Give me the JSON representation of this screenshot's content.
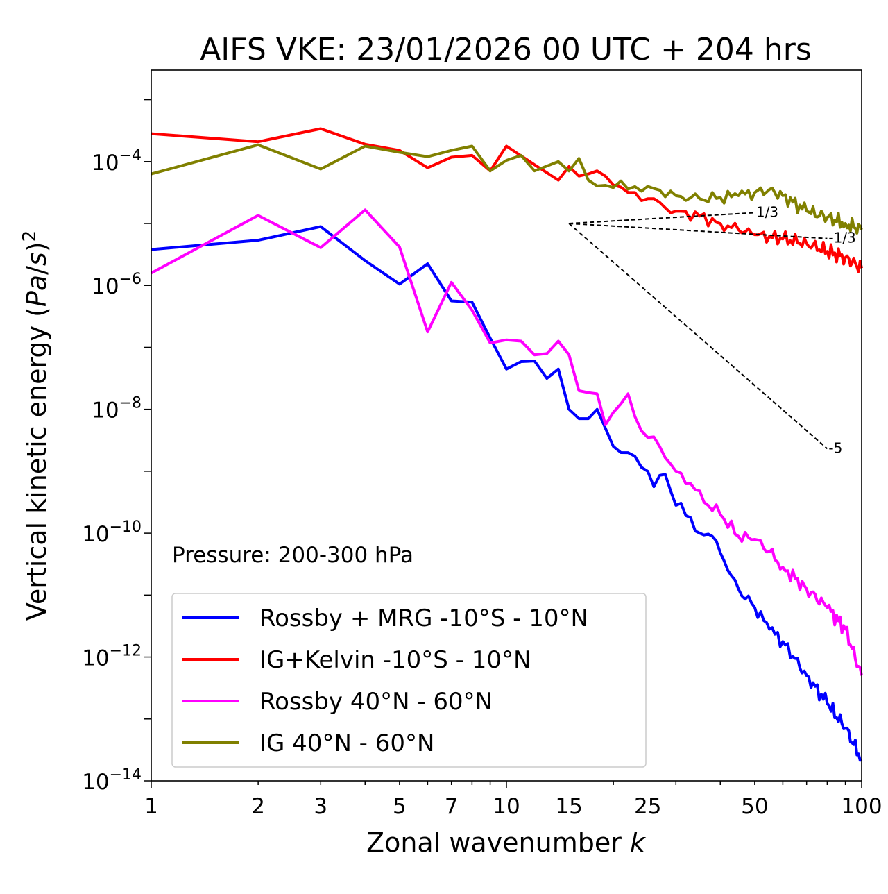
{
  "chart_data": {
    "type": "line",
    "title": "AIFS VKE: 23/01/2026 00 UTC + 204 hrs",
    "xlabel": "Zonal wavenumber k",
    "ylabel": "Vertical kinetic energy (Pa/s)^2",
    "x_scale": "log",
    "y_scale": "log",
    "xlim": [
      1,
      100
    ],
    "ylim": [
      1e-14,
      0.003
    ],
    "x_ticks": [
      1,
      2,
      3,
      5,
      7,
      10,
      15,
      25,
      50,
      100
    ],
    "y_ticks": [
      {
        "value": 1e-14,
        "base": "10",
        "exp": "−14"
      },
      {
        "value": 1e-12,
        "base": "10",
        "exp": "−12"
      },
      {
        "value": 1e-10,
        "base": "10",
        "exp": "−10"
      },
      {
        "value": 1e-08,
        "base": "10",
        "exp": "−8"
      },
      {
        "value": 1e-06,
        "base": "10",
        "exp": "−6"
      },
      {
        "value": 0.0001,
        "base": "10",
        "exp": "−4"
      }
    ],
    "annotation": "Pressure: 200-300 hPa",
    "legend_position": "lower-left",
    "series": [
      {
        "name": "Rossby + MRG -10°S - 10°N",
        "color": "#0000ff",
        "logy_anchors": [
          [
            1,
            -5.42
          ],
          [
            2,
            -5.27
          ],
          [
            3,
            -5.05
          ],
          [
            4,
            -5.6
          ],
          [
            5,
            -5.98
          ],
          [
            6,
            -5.65
          ],
          [
            7,
            -6.25
          ],
          [
            8,
            -6.27
          ],
          [
            9,
            -6.85
          ],
          [
            10,
            -7.35
          ],
          [
            11,
            -7.23
          ],
          [
            12,
            -7.22
          ],
          [
            13,
            -7.5
          ],
          [
            14,
            -7.35
          ],
          [
            15,
            -8.0
          ],
          [
            16,
            -8.15
          ],
          [
            17,
            -8.15
          ],
          [
            18,
            -8.0
          ],
          [
            20,
            -8.6
          ],
          [
            22,
            -8.7
          ],
          [
            25,
            -9.0
          ],
          [
            26,
            -9.25
          ],
          [
            28,
            -9.05
          ],
          [
            30,
            -9.55
          ],
          [
            33,
            -9.75
          ],
          [
            35,
            -10.0
          ],
          [
            38,
            -10.05
          ],
          [
            42,
            -10.6
          ],
          [
            45,
            -10.9
          ],
          [
            50,
            -11.2
          ],
          [
            55,
            -11.55
          ],
          [
            60,
            -11.75
          ],
          [
            70,
            -12.3
          ],
          [
            80,
            -12.75
          ],
          [
            90,
            -13.15
          ],
          [
            100,
            -13.65
          ]
        ]
      },
      {
        "name": "IG+Kelvin -10°S - 10°N",
        "color": "#ff0000",
        "logy_anchors": [
          [
            1,
            -3.55
          ],
          [
            2,
            -3.68
          ],
          [
            3,
            -3.47
          ],
          [
            4,
            -3.72
          ],
          [
            5,
            -3.82
          ],
          [
            6,
            -4.1
          ],
          [
            7,
            -3.93
          ],
          [
            8,
            -3.9
          ],
          [
            9,
            -4.15
          ],
          [
            10,
            -3.75
          ],
          [
            12,
            -4.05
          ],
          [
            14,
            -4.3
          ],
          [
            15,
            -4.08
          ],
          [
            17,
            -4.2
          ],
          [
            18,
            -4.15
          ],
          [
            20,
            -4.38
          ],
          [
            22,
            -4.5
          ],
          [
            25,
            -4.6
          ],
          [
            30,
            -4.8
          ],
          [
            35,
            -4.88
          ],
          [
            40,
            -5.0
          ],
          [
            45,
            -5.1
          ],
          [
            50,
            -5.18
          ],
          [
            60,
            -5.25
          ],
          [
            70,
            -5.32
          ],
          [
            80,
            -5.45
          ],
          [
            90,
            -5.55
          ],
          [
            100,
            -5.72
          ]
        ]
      },
      {
        "name": "Rossby 40°N - 60°N",
        "color": "#ff00ff",
        "logy_anchors": [
          [
            1,
            -5.8
          ],
          [
            2,
            -4.87
          ],
          [
            3,
            -5.39
          ],
          [
            4,
            -4.78
          ],
          [
            5,
            -5.38
          ],
          [
            6,
            -6.75
          ],
          [
            7,
            -5.95
          ],
          [
            8,
            -6.4
          ],
          [
            9,
            -6.93
          ],
          [
            10,
            -6.88
          ],
          [
            11,
            -6.9
          ],
          [
            12,
            -7.12
          ],
          [
            13,
            -7.1
          ],
          [
            14,
            -6.9
          ],
          [
            15,
            -7.12
          ],
          [
            16,
            -7.7
          ],
          [
            18,
            -7.75
          ],
          [
            19,
            -8.25
          ],
          [
            20,
            -8.05
          ],
          [
            22,
            -7.75
          ],
          [
            24,
            -8.35
          ],
          [
            27,
            -8.6
          ],
          [
            30,
            -9.0
          ],
          [
            33,
            -9.2
          ],
          [
            36,
            -9.5
          ],
          [
            40,
            -9.7
          ],
          [
            45,
            -10.05
          ],
          [
            50,
            -10.1
          ],
          [
            55,
            -10.3
          ],
          [
            60,
            -10.55
          ],
          [
            70,
            -10.9
          ],
          [
            80,
            -11.2
          ],
          [
            90,
            -11.55
          ],
          [
            100,
            -12.3
          ]
        ]
      },
      {
        "name": "IG 40°N - 60°N",
        "color": "#808000",
        "logy_anchors": [
          [
            1,
            -4.2
          ],
          [
            2,
            -3.73
          ],
          [
            3,
            -4.12
          ],
          [
            4,
            -3.75
          ],
          [
            5,
            -3.85
          ],
          [
            6,
            -3.92
          ],
          [
            7,
            -3.82
          ],
          [
            8,
            -3.75
          ],
          [
            9,
            -4.15
          ],
          [
            10,
            -3.98
          ],
          [
            11,
            -3.9
          ],
          [
            12,
            -4.15
          ],
          [
            14,
            -4.0
          ],
          [
            15,
            -4.15
          ],
          [
            16,
            -3.95
          ],
          [
            17,
            -4.3
          ],
          [
            20,
            -4.42
          ],
          [
            25,
            -4.4
          ],
          [
            30,
            -4.55
          ],
          [
            35,
            -4.6
          ],
          [
            40,
            -4.58
          ],
          [
            45,
            -4.55
          ],
          [
            50,
            -4.5
          ],
          [
            55,
            -4.45
          ],
          [
            60,
            -4.55
          ],
          [
            70,
            -4.8
          ],
          [
            80,
            -4.9
          ],
          [
            90,
            -5.0
          ],
          [
            100,
            -5.1
          ]
        ]
      }
    ],
    "reference_lines": [
      {
        "label": "1/3",
        "slope": 0.3333,
        "x_start": 15,
        "y_start": 1e-05,
        "x_end": 50
      },
      {
        "label": "-1/3",
        "slope": -0.3333,
        "x_start": 15,
        "y_start": 1e-05,
        "x_end": 80
      },
      {
        "label": "-5",
        "slope": -5,
        "x_start": 15,
        "y_start": 1e-05,
        "x_end": 80
      }
    ]
  }
}
